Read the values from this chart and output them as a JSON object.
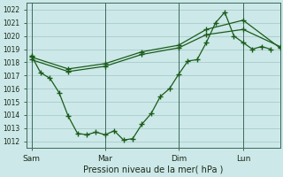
{
  "background_color": "#cce8e8",
  "grid_color": "#aacccc",
  "line_color": "#1a5c1a",
  "title": "Pression niveau de la mer( hPa )",
  "ylim": [
    1011.5,
    1022.5
  ],
  "yticks": [
    1012,
    1013,
    1014,
    1015,
    1016,
    1017,
    1018,
    1019,
    1020,
    1021,
    1022
  ],
  "xtick_labels": [
    "Sam",
    "Mar",
    "Dim",
    "Lun"
  ],
  "xtick_positions": [
    0,
    8,
    16,
    23
  ],
  "vline_positions": [
    0,
    8,
    16,
    23
  ],
  "xlim": [
    -0.5,
    27
  ],
  "series1_x": [
    0,
    1,
    2,
    3,
    4,
    5,
    6,
    7,
    8,
    9,
    10,
    11,
    12,
    13,
    14,
    15,
    16,
    17,
    18,
    19,
    20,
    21,
    22,
    23,
    24,
    25,
    26
  ],
  "series1_y": [
    1018.5,
    1017.2,
    1016.8,
    1015.7,
    1013.9,
    1012.6,
    1012.5,
    1012.7,
    1012.5,
    1012.8,
    1012.1,
    1012.2,
    1013.3,
    1014.1,
    1015.4,
    1016.0,
    1017.1,
    1018.1,
    1018.2,
    1019.5,
    1021.0,
    1021.8,
    1020.0,
    1019.5,
    1019.0,
    1019.2,
    1019.0
  ],
  "series2_x": [
    0,
    4,
    8,
    12,
    16,
    19,
    23,
    27
  ],
  "series2_y": [
    1018.4,
    1017.5,
    1017.9,
    1018.8,
    1019.3,
    1020.5,
    1021.2,
    1019.1
  ],
  "series3_x": [
    0,
    4,
    8,
    12,
    16,
    19,
    23,
    27
  ],
  "series3_y": [
    1018.2,
    1017.3,
    1017.7,
    1018.6,
    1019.1,
    1020.1,
    1020.5,
    1019.2
  ]
}
